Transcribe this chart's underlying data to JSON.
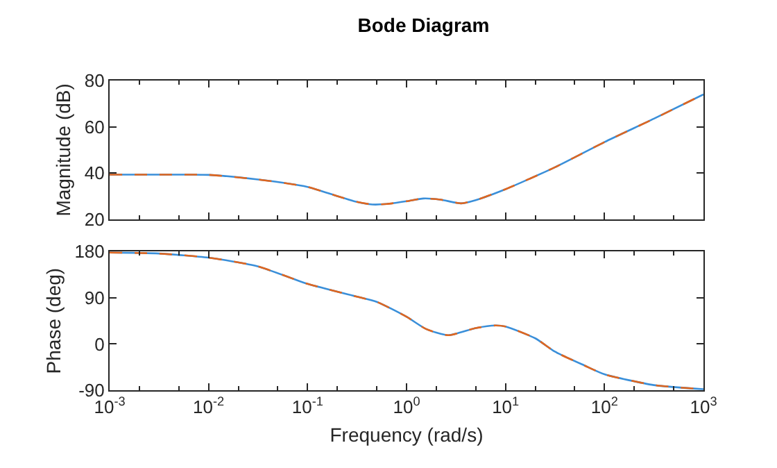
{
  "chart_data": [
    {
      "type": "line",
      "title": "Bode Diagram",
      "ylabel": "Magnitude (dB)",
      "log": "x",
      "xlim": [
        0.001,
        1000
      ],
      "xticks": [
        0.001,
        0.01,
        0.1,
        1,
        10,
        100,
        1000
      ],
      "ylim": [
        20,
        80
      ],
      "yticks": [
        20,
        40,
        60,
        80
      ],
      "tick_labels": "y",
      "x": [
        0.001,
        0.00316,
        0.01,
        0.0316,
        0.1,
        0.2,
        0.316,
        0.45,
        0.63,
        1,
        1.48,
        2.2,
        3.55,
        5,
        10,
        31.6,
        100,
        316,
        1000
      ],
      "series": [
        {
          "color": "#3a8fd9",
          "line_style": "solid",
          "values": [
            39.3,
            39.3,
            39.2,
            37.2,
            34,
            30,
            27.5,
            26.4,
            26.6,
            27.8,
            29,
            28.5,
            26.9,
            28.3,
            33,
            42.5,
            53.4,
            63.5,
            74
          ]
        },
        {
          "color": "#e0661f",
          "line_style": "dashed",
          "values": [
            39.3,
            39.3,
            39.2,
            37.2,
            34,
            30,
            27.5,
            26.4,
            26.6,
            27.8,
            29,
            28.5,
            26.9,
            28.3,
            33,
            42.5,
            53.4,
            63.5,
            74
          ]
        }
      ]
    },
    {
      "type": "line",
      "xlabel": "Frequency (rad/s)",
      "ylabel": "Phase (deg)",
      "log": "x",
      "xlim": [
        0.001,
        1000
      ],
      "xticks": [
        {
          "value": 0.001,
          "label": "10$^{-3}$"
        },
        {
          "value": 0.01,
          "label": "10$^{-2}$"
        },
        {
          "value": 0.1,
          "label": "10$^{-1}$"
        },
        {
          "value": 1,
          "label": "10$^{0}$"
        },
        {
          "value": 10,
          "label": "10$^{1}$"
        },
        {
          "value": 100,
          "label": "10$^{2}$"
        },
        {
          "value": 1000,
          "label": "10$^{3}$"
        }
      ],
      "ylim": [
        -90,
        180
      ],
      "yticks": [
        -90,
        0,
        90,
        180
      ],
      "x": [
        0.001,
        0.00316,
        0.01,
        0.0316,
        0.1,
        0.316,
        0.5,
        1,
        1.58,
        2.63,
        5,
        7.9,
        10,
        20,
        31.6,
        63,
        100,
        316,
        1000
      ],
      "series": [
        {
          "color": "#3a8fd9",
          "line_style": "solid",
          "values": [
            178,
            176,
            168,
            151,
            117,
            92,
            82,
            53,
            29,
            17,
            31,
            36,
            34,
            11,
            -15,
            -42,
            -59,
            -80,
            -88
          ]
        },
        {
          "color": "#e0661f",
          "line_style": "dashed",
          "values": [
            178,
            176,
            168,
            151,
            117,
            92,
            82,
            53,
            29,
            17,
            31,
            36,
            34,
            11,
            -15,
            -42,
            -59,
            -80,
            -88
          ]
        }
      ]
    }
  ]
}
